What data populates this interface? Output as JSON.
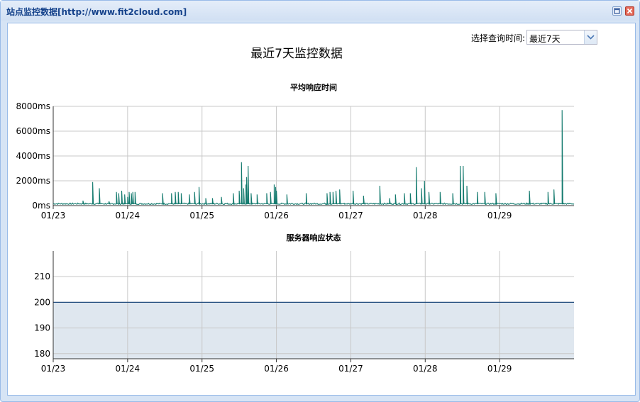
{
  "window": {
    "title": "站点监控数据[http://www.fit2cloud.com]"
  },
  "toolbar": {
    "query_label": "选择查询时间:",
    "range_value": "最近7天"
  },
  "page": {
    "title": "最近7天监控数据"
  },
  "colors": {
    "line": "#137a6e",
    "status_line": "#1f4b7c",
    "status_fill": "#dfe7ef",
    "grid": "#c8c8c8",
    "axis": "#333333"
  },
  "chart_data": [
    {
      "type": "line",
      "title": "平均响应时间",
      "x_ticks": [
        "01/23",
        "01/24",
        "01/25",
        "01/26",
        "01/27",
        "01/28",
        "01/29"
      ],
      "y_ticks": [
        "0ms",
        "2000ms",
        "4000ms",
        "6000ms",
        "8000ms"
      ],
      "y_tick_values": [
        0,
        2000,
        4000,
        6000,
        8000
      ],
      "x_unit": "day offset from 01/23",
      "xlim": [
        0,
        7
      ],
      "ylim": [
        0,
        8000
      ],
      "grid": true,
      "baseline_ms": 150,
      "spikes": [
        [
          0.4,
          400
        ],
        [
          0.53,
          1900
        ],
        [
          0.62,
          1400
        ],
        [
          0.75,
          350
        ],
        [
          0.85,
          1100
        ],
        [
          0.88,
          1000
        ],
        [
          0.92,
          1200
        ],
        [
          0.96,
          900
        ],
        [
          1.0,
          700
        ],
        [
          1.02,
          1100
        ],
        [
          1.05,
          1000
        ],
        [
          1.07,
          1100
        ],
        [
          1.1,
          1100
        ],
        [
          1.47,
          1000
        ],
        [
          1.59,
          1000
        ],
        [
          1.64,
          1100
        ],
        [
          1.68,
          1100
        ],
        [
          1.72,
          1000
        ],
        [
          1.83,
          900
        ],
        [
          1.9,
          1100
        ],
        [
          1.96,
          1500
        ],
        [
          2.05,
          600
        ],
        [
          2.14,
          600
        ],
        [
          2.26,
          700
        ],
        [
          2.42,
          1000
        ],
        [
          2.5,
          1200
        ],
        [
          2.53,
          3500
        ],
        [
          2.56,
          1400
        ],
        [
          2.59,
          1700
        ],
        [
          2.6,
          2300
        ],
        [
          2.62,
          3200
        ],
        [
          2.66,
          1000
        ],
        [
          2.74,
          900
        ],
        [
          2.87,
          1000
        ],
        [
          2.92,
          1100
        ],
        [
          2.97,
          1700
        ],
        [
          2.99,
          1500
        ],
        [
          3.0,
          1200
        ],
        [
          3.14,
          900
        ],
        [
          3.4,
          1000
        ],
        [
          3.68,
          1000
        ],
        [
          3.72,
          1100
        ],
        [
          3.76,
          1100
        ],
        [
          3.8,
          1200
        ],
        [
          3.85,
          1300
        ],
        [
          4.03,
          1200
        ],
        [
          4.17,
          800
        ],
        [
          4.39,
          1600
        ],
        [
          4.52,
          600
        ],
        [
          4.6,
          900
        ],
        [
          4.72,
          1000
        ],
        [
          4.8,
          1000
        ],
        [
          4.88,
          3100
        ],
        [
          4.95,
          1400
        ],
        [
          4.99,
          2000
        ],
        [
          5.05,
          1100
        ],
        [
          5.2,
          1100
        ],
        [
          5.37,
          1000
        ],
        [
          5.47,
          3200
        ],
        [
          5.51,
          3200
        ],
        [
          5.56,
          1600
        ],
        [
          5.7,
          1100
        ],
        [
          5.8,
          1100
        ],
        [
          5.95,
          1000
        ],
        [
          6.4,
          1200
        ],
        [
          6.65,
          1100
        ],
        [
          6.73,
          1300
        ],
        [
          6.84,
          7700
        ]
      ]
    },
    {
      "type": "area",
      "title": "服务器响应状态",
      "x_ticks": [
        "01/23",
        "01/24",
        "01/25",
        "01/26",
        "01/27",
        "01/28",
        "01/29"
      ],
      "y_ticks": [
        "180",
        "190",
        "200",
        "210"
      ],
      "y_tick_values": [
        180,
        190,
        200,
        210
      ],
      "xlim": [
        0,
        7
      ],
      "ylim": [
        178,
        220
      ],
      "grid": true,
      "value": 200
    }
  ]
}
